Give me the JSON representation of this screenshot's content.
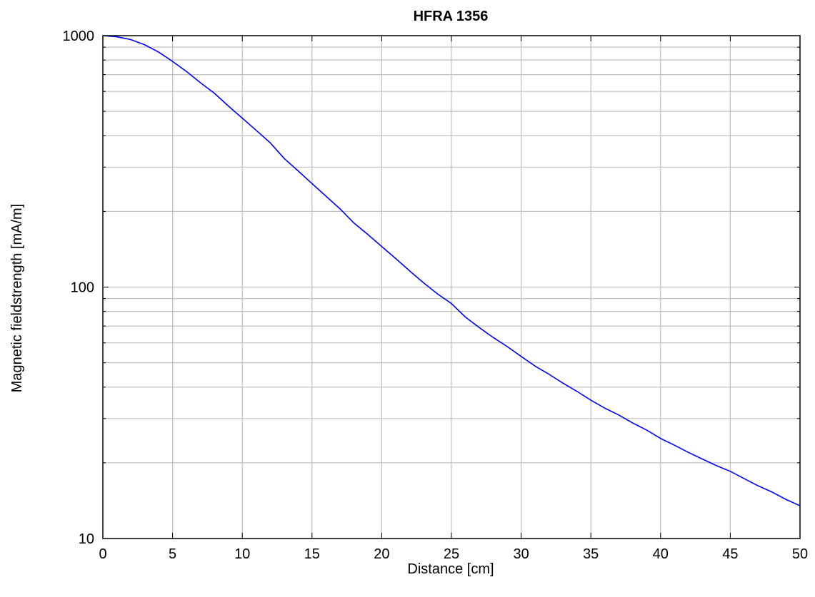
{
  "chart_data": {
    "type": "line",
    "title": "HFRA 1356",
    "xlabel": "Distance [cm]",
    "ylabel": "Magnetic fieldstrength [mA/m]",
    "xlim": [
      0,
      50
    ],
    "ylim": [
      10,
      1000
    ],
    "yscale": "log",
    "grid": true,
    "line_color": "#0000ff",
    "grid_color": "#c0c0c0",
    "x_ticks": [
      0,
      5,
      10,
      15,
      20,
      25,
      30,
      35,
      40,
      45,
      50
    ],
    "x_tick_labels": [
      "0",
      "5",
      "10",
      "15",
      "20",
      "25",
      "30",
      "35",
      "40",
      "45",
      "50"
    ],
    "y_ticks": [
      10,
      100,
      1000
    ],
    "y_tick_labels": [
      "10",
      "100",
      "1000"
    ],
    "series": [
      {
        "x": [
          0,
          1,
          2,
          3,
          4,
          5,
          6,
          7,
          8,
          9,
          10,
          11,
          12,
          13,
          14,
          15,
          16,
          17,
          18,
          19,
          20,
          21,
          22,
          23,
          24,
          25,
          26,
          27,
          28,
          29,
          30,
          31,
          32,
          33,
          34,
          35,
          36,
          37,
          38,
          39,
          40,
          41,
          42,
          43,
          44,
          45,
          46,
          47,
          48,
          49,
          50
        ],
        "y": [
          1000,
          990,
          965,
          920,
          860,
          790,
          720,
          650,
          590,
          525,
          470,
          420,
          375,
          325,
          290,
          258,
          230,
          205,
          180,
          162,
          145,
          130,
          116,
          104,
          94,
          86,
          76,
          69,
          63,
          58,
          53,
          48.5,
          45,
          41.5,
          38.5,
          35.5,
          33,
          31,
          28.8,
          27,
          25,
          23.5,
          22,
          20.7,
          19.5,
          18.5,
          17.3,
          16.2,
          15.3,
          14.3,
          13.5
        ]
      }
    ]
  }
}
